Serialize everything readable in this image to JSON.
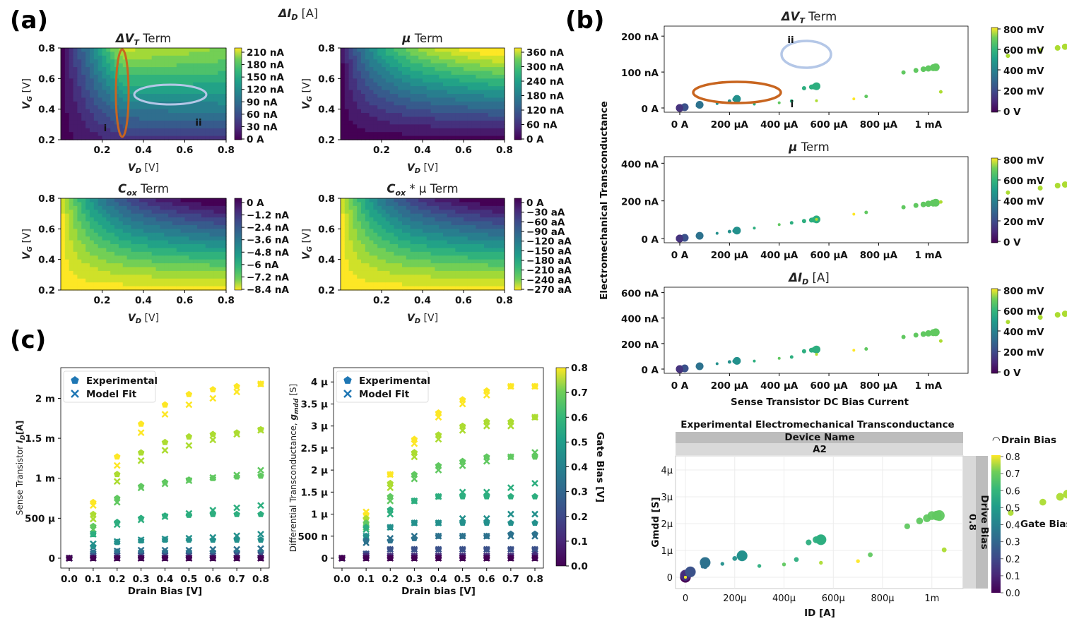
{
  "panel_labels": {
    "a": "(a)",
    "b": "(b)",
    "c": "(c)"
  },
  "chart_data": [
    {
      "id": "a",
      "type": "heatmap",
      "supertitle": "ΔI_D [A]",
      "supertitle_main": "ΔI",
      "supertitle_sub": "D",
      "supertitle_unit": " [A]",
      "xlabel_main": "V",
      "xlabel_sub": "D",
      "xlabel_unit": " [V]",
      "ylabel_main": "V",
      "ylabel_sub": "G",
      "ylabel_unit": " [V]",
      "xlim": [
        0.0,
        0.8
      ],
      "ylim": [
        0.2,
        0.8
      ],
      "xticks": [
        "0.2",
        "0.4",
        "0.6",
        "0.8"
      ],
      "yticks": [
        "0.2",
        "0.4",
        "0.6",
        "0.8"
      ],
      "subplots": [
        {
          "title_main": "ΔV",
          "title_sub": "T",
          "title_rest": " Term",
          "colormap": "viridis",
          "direction": "increasing",
          "shape": "saturating",
          "colorbar_ticks": [
            "210 nA",
            "180 nA",
            "150 nA",
            "120 nA",
            "90 nA",
            "60 nA",
            "30 nA",
            "0 A"
          ],
          "annotations": [
            {
              "label": "i",
              "color": "#c8651f",
              "region": "V_D ≈ 0.3, V_G 0.2–0.8"
            },
            {
              "label": "ii",
              "color": "#b4c7e7",
              "region": "V_G ≈ 0.5, V_D 0.4–0.7"
            }
          ]
        },
        {
          "title_main": "μ",
          "title_sub": "",
          "title_rest": " Term",
          "colormap": "viridis",
          "direction": "increasing",
          "shape": "monotone",
          "colorbar_ticks": [
            "360 nA",
            "300 nA",
            "240 nA",
            "180 nA",
            "120 nA",
            "60 nA",
            "0 A"
          ],
          "annotations": []
        },
        {
          "title_main": "C",
          "title_sub": "ox",
          "title_rest": " Term",
          "colormap": "viridis",
          "direction": "decreasing",
          "shape": "monotone",
          "colorbar_ticks": [
            "0 A",
            "−1.2 nA",
            "−2.4 nA",
            "−3.6 nA",
            "−4.8 nA",
            "−6 nA",
            "−7.2 nA",
            "−8.4 nA"
          ],
          "annotations": []
        },
        {
          "title_main": "C",
          "title_sub": "ox",
          "title_rest": " * μ Term",
          "colormap": "viridis",
          "direction": "decreasing",
          "shape": "monotone",
          "colorbar_ticks": [
            "0 A",
            "−30 aA",
            "−60 aA",
            "−90 aA",
            "−120 aA",
            "−150 aA",
            "−180 aA",
            "−210 aA",
            "−240 aA",
            "−270 aA"
          ],
          "annotations": []
        }
      ]
    },
    {
      "id": "b",
      "type": "scatter",
      "ylabel": "Electromechanical Transconductance",
      "xlabel": "Sense Transistor DC Bias Current",
      "x_unit": "A",
      "xlim": [
        0,
        0.00112
      ],
      "xticks": [
        "0 A",
        "200 μA",
        "400 μA",
        "600 μA",
        "800 μA",
        "1 mA"
      ],
      "colorbar_ticks": [
        "800 mV",
        "600 mV",
        "400 mV",
        "200 mV",
        "0 V"
      ],
      "subplots": [
        {
          "title_main": "ΔV",
          "title_sub": "T",
          "title_rest": " Term",
          "ylim": [
            0,
            2.2e-07
          ],
          "yticks": [
            "200 nA",
            "100 nA",
            "0 A"
          ],
          "series_note": "marker size ∝ drain bias, color = gate bias 0–0.8 V",
          "annotations": [
            {
              "label": "i",
              "color": "#c8651f"
            },
            {
              "label": "ii",
              "color": "#b4c7e7"
            }
          ]
        },
        {
          "title_main": "μ",
          "title_sub": "",
          "title_rest": " Term",
          "ylim": [
            0,
            4.2e-07
          ],
          "yticks": [
            "400 nA",
            "200 nA",
            "0 A"
          ],
          "annotations": []
        },
        {
          "title_main": "ΔI",
          "title_sub": "D",
          "title_rest": " [A]",
          "ylim": [
            0,
            6.2e-07
          ],
          "yticks": [
            "600 nA",
            "400 nA",
            "200 nA",
            "0 A"
          ],
          "annotations": []
        }
      ]
    },
    {
      "id": "b-lower",
      "type": "scatter",
      "title": "Experimental Electromechanical Transconductance",
      "facet_header": "Device Name",
      "facet_value": "A2",
      "side_header": "Drive Bias",
      "side_value": "0.8",
      "legend_size": "Drain Bias",
      "legend_color": "Gate Bias",
      "xlabel": "ID [A]",
      "ylabel": "Gmdd [S]",
      "xlim": [
        -3e-05,
        0.00111
      ],
      "ylim": [
        -4e-07,
        4.4e-06
      ],
      "xticks": [
        "0",
        "200μ",
        "400μ",
        "600μ",
        "800μ",
        "1m"
      ],
      "yticks": [
        "4μ",
        "3μ",
        "2μ",
        "1μ",
        "0"
      ],
      "colorbar_ticks": [
        "0.8",
        "0.7",
        "0.6",
        "0.5",
        "0.4",
        "0.3",
        "0.2",
        "0.1",
        "0.0"
      ]
    },
    {
      "id": "c-left",
      "type": "scatter",
      "ylabel_main": "Sense Transistor ",
      "ylabel_sym": "I",
      "ylabel_sub": "D",
      "ylabel_unit": "[A]",
      "xlabel": "Drain Bias [V]",
      "x": [
        0.0,
        0.1,
        0.2,
        0.3,
        0.4,
        0.5,
        0.6,
        0.7,
        0.8
      ],
      "gate_bias": [
        0.0,
        0.1,
        0.2,
        0.3,
        0.4,
        0.5,
        0.6,
        0.7,
        0.8
      ],
      "ylim": [
        -0.0001,
        0.0023
      ],
      "xticks": [
        "0.0",
        "0.1",
        "0.2",
        "0.3",
        "0.4",
        "0.5",
        "0.6",
        "0.7",
        "0.8"
      ],
      "yticks": [
        "2 m",
        "1.5 m",
        "1 m",
        "500 μ",
        "0"
      ],
      "legend": [
        "Experimental",
        "Model Fit"
      ],
      "series": [
        {
          "gate": 0.8,
          "experimental": [
            0,
            0.0007,
            0.00127,
            0.00168,
            0.00192,
            0.00205,
            0.00211,
            0.00215,
            0.00218
          ],
          "model": [
            0,
            0.00066,
            0.00116,
            0.00157,
            0.0018,
            0.00192,
            0.002,
            0.00208,
            0.00218
          ]
        },
        {
          "gate": 0.7,
          "experimental": [
            0,
            0.00055,
            0.00105,
            0.00132,
            0.00145,
            0.00152,
            0.00155,
            0.00157,
            0.00161
          ],
          "model": [
            0,
            0.00049,
            0.00096,
            0.00122,
            0.00135,
            0.00141,
            0.00148,
            0.00155,
            0.0016
          ]
        },
        {
          "gate": 0.6,
          "experimental": [
            0,
            0.0004,
            0.00075,
            0.0009,
            0.00095,
            0.00098,
            0.001,
            0.00102,
            0.00103
          ],
          "model": [
            0,
            0.00036,
            0.0007,
            0.00088,
            0.00093,
            0.00097,
            0.00101,
            0.00104,
            0.0011
          ]
        },
        {
          "gate": 0.5,
          "experimental": [
            0,
            0.0003,
            0.00045,
            0.0005,
            0.00053,
            0.00054,
            0.00055,
            0.00055,
            0.00055
          ],
          "model": [
            0,
            0.0003,
            0.00042,
            0.00048,
            0.00052,
            0.00056,
            0.0006,
            0.00063,
            0.00066
          ]
        },
        {
          "gate": 0.4,
          "experimental": [
            0,
            0.00015,
            0.0002,
            0.00022,
            0.00023,
            0.00023,
            0.00023,
            0.00023,
            0.00023
          ],
          "model": [
            0,
            0.00018,
            0.00021,
            0.00023,
            0.00024,
            0.00025,
            0.00026,
            0.00028,
            0.0003
          ]
        },
        {
          "gate": 0.3,
          "experimental": [
            0,
            7e-05,
            8e-05,
            8e-05,
            8e-05,
            8e-05,
            8e-05,
            8e-05,
            8e-05
          ],
          "model": [
            0,
            8e-05,
            9e-05,
            0.0001,
            0.0001,
            0.0001,
            0.00011,
            0.00011,
            0.00012
          ]
        },
        {
          "gate": 0.2,
          "experimental": [
            0,
            2e-05,
            2e-05,
            2e-05,
            2e-05,
            2e-05,
            2e-05,
            2e-05,
            2e-05
          ],
          "model": [
            0,
            3e-05,
            3e-05,
            3e-05,
            3e-05,
            3e-05,
            3e-05,
            4e-05,
            4e-05
          ]
        },
        {
          "gate": 0.1,
          "experimental": [
            0,
            0,
            0,
            0,
            0,
            0,
            0,
            0,
            0
          ],
          "model": [
            0,
            0,
            0,
            0,
            0,
            0,
            0,
            0,
            0
          ]
        },
        {
          "gate": 0.0,
          "experimental": [
            0,
            0,
            0,
            0,
            0,
            0,
            0,
            0,
            0
          ],
          "model": [
            0,
            0,
            0,
            0,
            0,
            0,
            0,
            0,
            0
          ]
        }
      ]
    },
    {
      "id": "c-right",
      "type": "scatter",
      "ylabel_main": "Differential Transconductance, ",
      "ylabel_sym": "g",
      "ylabel_sub": "mdd",
      "ylabel_unit": " [S]",
      "xlabel": "Drain bias [V]",
      "x": [
        0.0,
        0.1,
        0.2,
        0.3,
        0.4,
        0.5,
        0.6,
        0.7,
        0.8
      ],
      "ylim": [
        -2e-07,
        4.2e-06
      ],
      "xticks": [
        "0.0",
        "0.1",
        "0.2",
        "0.3",
        "0.4",
        "0.5",
        "0.6",
        "0.7",
        "0.8"
      ],
      "yticks": [
        "4 μ",
        "3.5 μ",
        "3 μ",
        "2.5 μ",
        "2 μ",
        "1.5 μ",
        "1 μ",
        "500 n",
        "0"
      ],
      "legend": [
        "Experimental",
        "Model Fit"
      ],
      "colorbar_label": "Gate Bias [V]",
      "colorbar_ticks": [
        "0.8",
        "0.7",
        "0.6",
        "0.5",
        "0.4",
        "0.3",
        "0.2",
        "0.1",
        "0.0"
      ],
      "series": [
        {
          "gate": 0.8,
          "experimental": [
            0,
            1e-06,
            1.9e-06,
            2.7e-06,
            3.3e-06,
            3.6e-06,
            3.8e-06,
            3.9e-06,
            3.9e-06
          ],
          "model": [
            0,
            1.05e-06,
            1.9e-06,
            2.6e-06,
            3.2e-06,
            3.5e-06,
            3.7e-06,
            3.9e-06,
            3.9e-06
          ]
        },
        {
          "gate": 0.7,
          "experimental": [
            0,
            9e-07,
            1.7e-06,
            2.4e-06,
            2.8e-06,
            3e-06,
            3.1e-06,
            3.1e-06,
            3.2e-06
          ],
          "model": [
            0,
            8.5e-07,
            1.6e-06,
            2.3e-06,
            2.7e-06,
            2.9e-06,
            3e-06,
            3e-06,
            3.2e-06
          ]
        },
        {
          "gate": 0.6,
          "experimental": [
            0,
            8e-07,
            1.4e-06,
            1.9e-06,
            2.1e-06,
            2.2e-06,
            2.3e-06,
            2.3e-06,
            2.3e-06
          ],
          "model": [
            0,
            7e-07,
            1.3e-06,
            1.8e-06,
            2e-06,
            2.1e-06,
            2.2e-06,
            2.3e-06,
            2.4e-06
          ]
        },
        {
          "gate": 0.5,
          "experimental": [
            0,
            7e-07,
            1.1e-06,
            1.3e-06,
            1.4e-06,
            1.4e-06,
            1.4e-06,
            1.4e-06,
            1.4e-06
          ],
          "model": [
            0,
            6.5e-07,
            1e-06,
            1.3e-06,
            1.4e-06,
            1.5e-06,
            1.5e-06,
            1.6e-06,
            1.7e-06
          ]
        },
        {
          "gate": 0.4,
          "experimental": [
            0,
            5e-07,
            7e-07,
            8e-07,
            8e-07,
            8e-07,
            8e-07,
            8e-07,
            8e-07
          ],
          "model": [
            0,
            5e-07,
            7e-07,
            8e-07,
            8e-07,
            9e-07,
            9e-07,
            1e-06,
            1e-06
          ]
        },
        {
          "gate": 0.3,
          "experimental": [
            0,
            4e-07,
            4e-07,
            4.5e-07,
            5e-07,
            5e-07,
            5e-07,
            5.5e-07,
            5.5e-07
          ],
          "model": [
            0,
            3.5e-07,
            4.5e-07,
            5e-07,
            5e-07,
            5e-07,
            5e-07,
            5e-07,
            5e-07
          ]
        },
        {
          "gate": 0.2,
          "experimental": [
            0,
            1e-07,
            2e-07,
            2e-07,
            2e-07,
            2e-07,
            2e-07,
            2e-07,
            2e-07
          ],
          "model": [
            0,
            1e-07,
            2e-07,
            2e-07,
            2e-07,
            2e-07,
            2e-07,
            2e-07,
            2e-07
          ]
        },
        {
          "gate": 0.1,
          "experimental": [
            0,
            5e-08,
            5e-08,
            5e-08,
            5e-08,
            5e-08,
            5e-08,
            5e-08,
            8e-08
          ],
          "model": [
            0,
            5e-08,
            5e-08,
            5e-08,
            5e-08,
            5e-08,
            5e-08,
            5e-08,
            5e-08
          ]
        },
        {
          "gate": 0.0,
          "experimental": [
            0,
            0,
            0,
            0,
            0,
            0,
            0,
            0,
            0
          ],
          "model": [
            0,
            0,
            0,
            0,
            0,
            0,
            0,
            0,
            0
          ]
        }
      ]
    }
  ]
}
